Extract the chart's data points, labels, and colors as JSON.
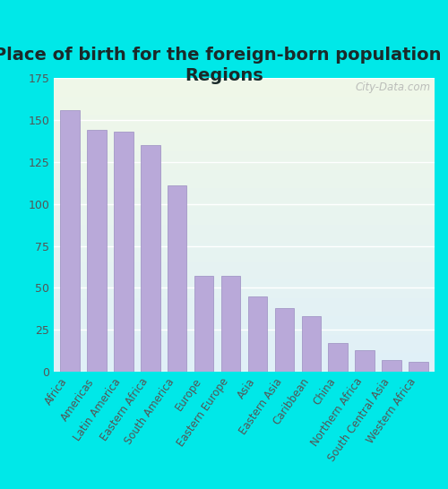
{
  "title": "Place of birth for the foreign-born population -\nRegions",
  "categories": [
    "Africa",
    "Americas",
    "Latin America",
    "Eastern Africa",
    "South America",
    "Europe",
    "Eastern Europe",
    "Asia",
    "Eastern Asia",
    "Caribbean",
    "China",
    "Northern Africa",
    "South Central Asia",
    "Western Africa"
  ],
  "values": [
    156,
    144,
    143,
    135,
    111,
    57,
    57,
    45,
    38,
    33,
    17,
    13,
    7,
    6
  ],
  "bar_color": "#b9a9d9",
  "bar_edge_color": "#9a8dc0",
  "ylim": [
    0,
    175
  ],
  "yticks": [
    0,
    25,
    50,
    75,
    100,
    125,
    150,
    175
  ],
  "background_outer": "#00e8e8",
  "background_inner_top": "#f0f8e8",
  "background_inner_bottom": "#e0f0f8",
  "grid_color": "#ffffff",
  "title_fontsize": 14,
  "tick_label_fontsize": 8.5,
  "ytick_label_fontsize": 9,
  "watermark_text": "City-Data.com",
  "title_color": "#1a2a2a"
}
